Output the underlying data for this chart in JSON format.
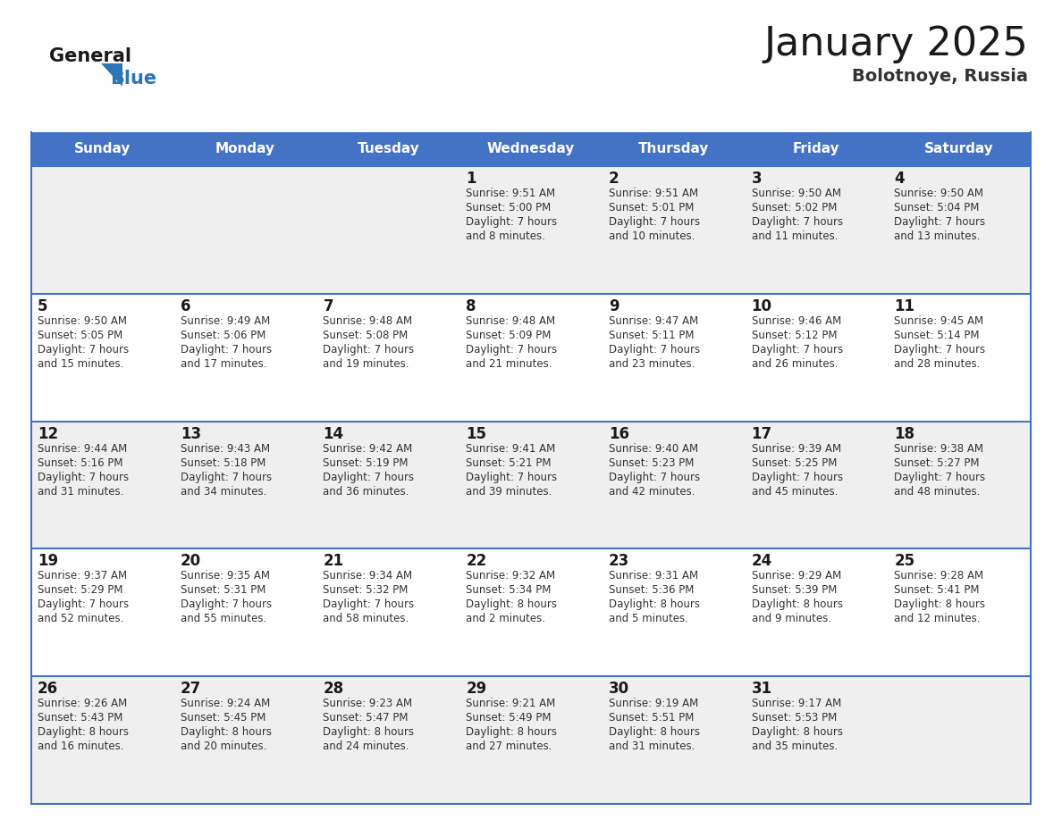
{
  "title": "January 2025",
  "subtitle": "Bolotnoye, Russia",
  "days_of_week": [
    "Sunday",
    "Monday",
    "Tuesday",
    "Wednesday",
    "Thursday",
    "Friday",
    "Saturday"
  ],
  "header_bg_color": "#4472C4",
  "header_text_color": "#FFFFFF",
  "cell_bg_light": "#EFEFEF",
  "cell_bg_white": "#FFFFFF",
  "cell_border_color": "#4472C4",
  "title_color": "#1a1a1a",
  "subtitle_color": "#333333",
  "day_number_color": "#1a1a1a",
  "info_text_color": "#333333",
  "logo_general_color": "#1a1a1a",
  "logo_blue_color": "#2E75B6",
  "weeks": [
    [
      {
        "day": null,
        "info": ""
      },
      {
        "day": null,
        "info": ""
      },
      {
        "day": null,
        "info": ""
      },
      {
        "day": 1,
        "info": "Sunrise: 9:51 AM\nSunset: 5:00 PM\nDaylight: 7 hours\nand 8 minutes."
      },
      {
        "day": 2,
        "info": "Sunrise: 9:51 AM\nSunset: 5:01 PM\nDaylight: 7 hours\nand 10 minutes."
      },
      {
        "day": 3,
        "info": "Sunrise: 9:50 AM\nSunset: 5:02 PM\nDaylight: 7 hours\nand 11 minutes."
      },
      {
        "day": 4,
        "info": "Sunrise: 9:50 AM\nSunset: 5:04 PM\nDaylight: 7 hours\nand 13 minutes."
      }
    ],
    [
      {
        "day": 5,
        "info": "Sunrise: 9:50 AM\nSunset: 5:05 PM\nDaylight: 7 hours\nand 15 minutes."
      },
      {
        "day": 6,
        "info": "Sunrise: 9:49 AM\nSunset: 5:06 PM\nDaylight: 7 hours\nand 17 minutes."
      },
      {
        "day": 7,
        "info": "Sunrise: 9:48 AM\nSunset: 5:08 PM\nDaylight: 7 hours\nand 19 minutes."
      },
      {
        "day": 8,
        "info": "Sunrise: 9:48 AM\nSunset: 5:09 PM\nDaylight: 7 hours\nand 21 minutes."
      },
      {
        "day": 9,
        "info": "Sunrise: 9:47 AM\nSunset: 5:11 PM\nDaylight: 7 hours\nand 23 minutes."
      },
      {
        "day": 10,
        "info": "Sunrise: 9:46 AM\nSunset: 5:12 PM\nDaylight: 7 hours\nand 26 minutes."
      },
      {
        "day": 11,
        "info": "Sunrise: 9:45 AM\nSunset: 5:14 PM\nDaylight: 7 hours\nand 28 minutes."
      }
    ],
    [
      {
        "day": 12,
        "info": "Sunrise: 9:44 AM\nSunset: 5:16 PM\nDaylight: 7 hours\nand 31 minutes."
      },
      {
        "day": 13,
        "info": "Sunrise: 9:43 AM\nSunset: 5:18 PM\nDaylight: 7 hours\nand 34 minutes."
      },
      {
        "day": 14,
        "info": "Sunrise: 9:42 AM\nSunset: 5:19 PM\nDaylight: 7 hours\nand 36 minutes."
      },
      {
        "day": 15,
        "info": "Sunrise: 9:41 AM\nSunset: 5:21 PM\nDaylight: 7 hours\nand 39 minutes."
      },
      {
        "day": 16,
        "info": "Sunrise: 9:40 AM\nSunset: 5:23 PM\nDaylight: 7 hours\nand 42 minutes."
      },
      {
        "day": 17,
        "info": "Sunrise: 9:39 AM\nSunset: 5:25 PM\nDaylight: 7 hours\nand 45 minutes."
      },
      {
        "day": 18,
        "info": "Sunrise: 9:38 AM\nSunset: 5:27 PM\nDaylight: 7 hours\nand 48 minutes."
      }
    ],
    [
      {
        "day": 19,
        "info": "Sunrise: 9:37 AM\nSunset: 5:29 PM\nDaylight: 7 hours\nand 52 minutes."
      },
      {
        "day": 20,
        "info": "Sunrise: 9:35 AM\nSunset: 5:31 PM\nDaylight: 7 hours\nand 55 minutes."
      },
      {
        "day": 21,
        "info": "Sunrise: 9:34 AM\nSunset: 5:32 PM\nDaylight: 7 hours\nand 58 minutes."
      },
      {
        "day": 22,
        "info": "Sunrise: 9:32 AM\nSunset: 5:34 PM\nDaylight: 8 hours\nand 2 minutes."
      },
      {
        "day": 23,
        "info": "Sunrise: 9:31 AM\nSunset: 5:36 PM\nDaylight: 8 hours\nand 5 minutes."
      },
      {
        "day": 24,
        "info": "Sunrise: 9:29 AM\nSunset: 5:39 PM\nDaylight: 8 hours\nand 9 minutes."
      },
      {
        "day": 25,
        "info": "Sunrise: 9:28 AM\nSunset: 5:41 PM\nDaylight: 8 hours\nand 12 minutes."
      }
    ],
    [
      {
        "day": 26,
        "info": "Sunrise: 9:26 AM\nSunset: 5:43 PM\nDaylight: 8 hours\nand 16 minutes."
      },
      {
        "day": 27,
        "info": "Sunrise: 9:24 AM\nSunset: 5:45 PM\nDaylight: 8 hours\nand 20 minutes."
      },
      {
        "day": 28,
        "info": "Sunrise: 9:23 AM\nSunset: 5:47 PM\nDaylight: 8 hours\nand 24 minutes."
      },
      {
        "day": 29,
        "info": "Sunrise: 9:21 AM\nSunset: 5:49 PM\nDaylight: 8 hours\nand 27 minutes."
      },
      {
        "day": 30,
        "info": "Sunrise: 9:19 AM\nSunset: 5:51 PM\nDaylight: 8 hours\nand 31 minutes."
      },
      {
        "day": 31,
        "info": "Sunrise: 9:17 AM\nSunset: 5:53 PM\nDaylight: 8 hours\nand 35 minutes."
      },
      {
        "day": null,
        "info": ""
      }
    ]
  ]
}
